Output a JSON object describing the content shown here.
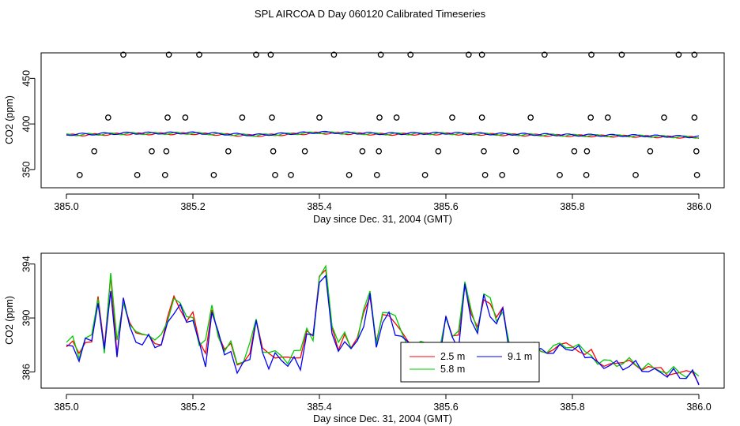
{
  "title": "SPL AIRCOA D  Day 060120  Calibrated Timeseries",
  "chart_data": [
    {
      "type": "scatter",
      "id": "top",
      "xlabel": "Day since Dec. 31, 2004 (GMT)",
      "ylabel": "CO2 (ppm)",
      "xlim": [
        385.0,
        386.0
      ],
      "ylim": [
        330,
        478
      ],
      "x_ticks": [
        "385.0",
        "385.2",
        "385.4",
        "385.6",
        "385.8",
        "386.0"
      ],
      "y_ticks": [
        "350",
        "400",
        "450"
      ],
      "open_circle_groups": [
        {
          "y": 476,
          "x": [
            385.09,
            385.162,
            385.21,
            385.3,
            385.323,
            385.423,
            385.497,
            385.544,
            385.636,
            385.657,
            385.756,
            385.83,
            385.878,
            385.968,
            385.993
          ]
        },
        {
          "y": 407,
          "x": [
            385.066,
            385.16,
            385.188,
            385.278,
            385.325,
            385.4,
            385.495,
            385.522,
            385.61,
            385.657,
            385.734,
            385.829,
            385.856,
            385.945,
            385.993
          ]
        },
        {
          "y": 370,
          "x": [
            385.044,
            385.135,
            385.158,
            385.256,
            385.327,
            385.377,
            385.468,
            385.494,
            385.588,
            385.66,
            385.711,
            385.803,
            385.823,
            385.923,
            385.996
          ]
        },
        {
          "y": 344,
          "x": [
            385.021,
            385.112,
            385.156,
            385.233,
            385.33,
            385.355,
            385.447,
            385.491,
            385.567,
            385.662,
            385.689,
            385.78,
            385.822,
            385.9,
            385.997
          ]
        }
      ],
      "series": [
        {
          "name": "2.5 m",
          "color": "#ff0000"
        },
        {
          "name": "5.8 m",
          "color": "#00cc00"
        },
        {
          "name": "9.1 m",
          "color": "#0000ff"
        }
      ],
      "base_line": {
        "x": [
          385.0,
          385.1,
          385.2,
          385.3,
          385.4,
          385.5,
          385.6,
          385.7,
          385.8,
          385.9,
          386.0
        ],
        "y": [
          388.0,
          389.5,
          389.8,
          387.5,
          390.5,
          389.0,
          389.5,
          388.5,
          387.5,
          386.8,
          385.5
        ]
      }
    },
    {
      "type": "line",
      "id": "bottom",
      "xlabel": "Day since Dec. 31, 2004 (GMT)",
      "ylabel": "CO2 (ppm)",
      "xlim": [
        385.0,
        386.0
      ],
      "ylim": [
        384.8,
        394.8
      ],
      "x_ticks": [
        "385.0",
        "385.2",
        "385.4",
        "385.6",
        "385.8",
        "386.0"
      ],
      "y_ticks": [
        "386",
        "390",
        "394"
      ],
      "legend": {
        "position": "bottom-center",
        "entries": [
          "2.5 m",
          "5.8 m",
          "9.1 m"
        ]
      },
      "base": {
        "x": [
          385.0,
          385.01,
          385.02,
          385.03,
          385.04,
          385.05,
          385.06,
          385.07,
          385.08,
          385.09,
          385.1,
          385.11,
          385.12,
          385.13,
          385.14,
          385.15,
          385.16,
          385.17,
          385.18,
          385.19,
          385.2,
          385.21,
          385.22,
          385.23,
          385.24,
          385.25,
          385.26,
          385.27,
          385.28,
          385.29,
          385.3,
          385.31,
          385.32,
          385.33,
          385.34,
          385.35,
          385.36,
          385.37,
          385.38,
          385.39,
          385.4,
          385.41,
          385.42,
          385.43,
          385.44,
          385.45,
          385.46,
          385.47,
          385.48,
          385.49,
          385.5,
          385.51,
          385.52,
          385.53,
          385.54,
          385.55,
          385.56,
          385.57,
          385.58,
          385.59,
          385.6,
          385.61,
          385.62,
          385.63,
          385.64,
          385.65,
          385.66,
          385.67,
          385.68,
          385.69,
          385.7,
          385.71,
          385.72,
          385.73,
          385.74,
          385.75,
          385.76,
          385.77,
          385.78,
          385.79,
          385.8,
          385.81,
          385.82,
          385.83,
          385.84,
          385.85,
          385.86,
          385.87,
          385.88,
          385.89,
          385.9,
          385.91,
          385.92,
          385.93,
          385.94,
          385.95,
          385.96,
          385.97,
          385.98,
          385.99,
          386.0
        ],
        "y": [
          387.8,
          388.0,
          387.2,
          388.3,
          388.4,
          391.5,
          387.5,
          393.0,
          387.5,
          391.3,
          389.5,
          388.6,
          388.7,
          388.9,
          388.2,
          387.8,
          389.8,
          391.6,
          390.8,
          389.8,
          390.2,
          388.0,
          387.4,
          390.8,
          388.8,
          387.4,
          387.9,
          386.6,
          386.9,
          387.3,
          389.6,
          387.6,
          387.5,
          387.2,
          387.0,
          386.8,
          386.9,
          387.2,
          389.2,
          388.5,
          392.8,
          393.5,
          389.5,
          387.7,
          388.6,
          387.5,
          388.5,
          390.6,
          391.6,
          388.0,
          390.0,
          390.2,
          389.8,
          389.0,
          388.0,
          387.5,
          388.0,
          387.7,
          387.5,
          387.3,
          389.9,
          388.8,
          388.9,
          392.3,
          390.0,
          389.2,
          391.5,
          391.2,
          389.9,
          390.5,
          387.8,
          387.2,
          387.0,
          387.6,
          387.8,
          387.5,
          387.6,
          387.7,
          387.8,
          387.9,
          387.9,
          387.7,
          387.3,
          387.4,
          386.5,
          386.5,
          386.8,
          386.6,
          386.4,
          386.7,
          386.6,
          386.3,
          386.3,
          386.0,
          386.2,
          385.9,
          386.0,
          385.8,
          385.8,
          385.9,
          385.3
        ]
      },
      "series": [
        {
          "name": "2.5 m",
          "color": "#ff0000"
        },
        {
          "name": "5.8 m",
          "color": "#00cc00"
        },
        {
          "name": "9.1 m",
          "color": "#0000ff"
        }
      ]
    }
  ]
}
